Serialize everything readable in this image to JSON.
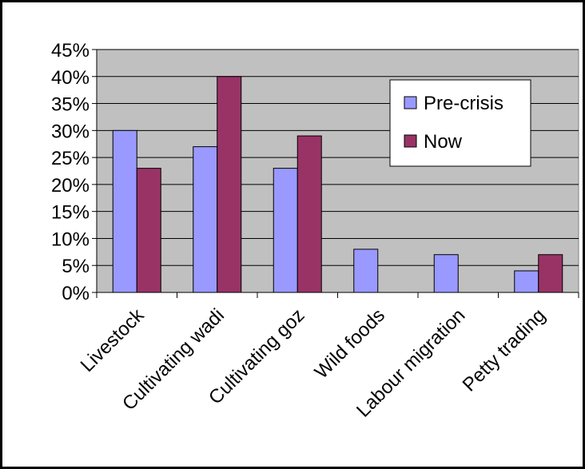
{
  "chart_data": {
    "type": "bar",
    "categories": [
      "Livestock",
      "Cultivating wadi",
      "Cultivating goz",
      "Wild foods",
      "Labour migration",
      "Petty trading"
    ],
    "series": [
      {
        "name": "Pre-crisis",
        "values": [
          30,
          27,
          23,
          8,
          7,
          4
        ],
        "color": "#9999ff"
      },
      {
        "name": "Now",
        "values": [
          23,
          40,
          29,
          null,
          null,
          7
        ],
        "color": "#993366"
      }
    ],
    "ylim": [
      0,
      45
    ],
    "yticks": [
      "0%",
      "5%",
      "10%",
      "15%",
      "20%",
      "25%",
      "30%",
      "35%",
      "40%",
      "45%"
    ],
    "ytick_values": [
      0,
      5,
      10,
      15,
      20,
      25,
      30,
      35,
      40,
      45
    ],
    "grid": true,
    "legend_position": "right-top",
    "plot_background": "#c0c0c0",
    "title": "",
    "xlabel": "",
    "ylabel": ""
  }
}
